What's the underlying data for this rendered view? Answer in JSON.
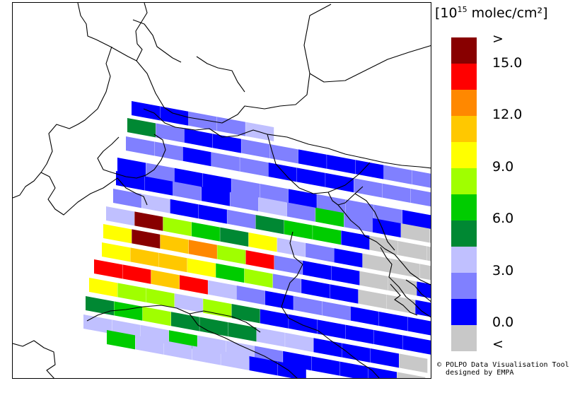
{
  "legend": {
    "unit_base": "[10",
    "unit_exp": "15",
    "unit_rest": " molec/cm²]",
    "labels": [
      ">",
      "15.0",
      "12.0",
      "9.0",
      "6.0",
      "3.0",
      "0.0",
      "<"
    ],
    "colors": [
      "#880000",
      "#ff0000",
      "#ff8800",
      "#ffc800",
      "#ffff00",
      "#a0ff00",
      "#00cc00",
      "#008833",
      "#c0c0ff",
      "#8080ff",
      "#0000ff",
      "#c8c8c8"
    ]
  },
  "credit": {
    "line1": "© POLPO Data Visualisation Tool",
    "line2": "designed by EMPA"
  },
  "swaths": [
    [
      10,
      10,
      9,
      9,
      8
    ],
    [
      7,
      9,
      10,
      10,
      9,
      9,
      10,
      10,
      10,
      9,
      9
    ],
    [
      9,
      9,
      10,
      9,
      9,
      10,
      10,
      10,
      9,
      9,
      9,
      11
    ],
    [
      10,
      9,
      10,
      10,
      9,
      9,
      10,
      9,
      9,
      9,
      10,
      11
    ],
    [
      10,
      10,
      9,
      10,
      9,
      8,
      9,
      6,
      9,
      10,
      11,
      11
    ],
    [
      9,
      8,
      10,
      10,
      9,
      7,
      6,
      6,
      10,
      11,
      11,
      11
    ],
    [
      8,
      0,
      5,
      6,
      7,
      4,
      8,
      9,
      10,
      11,
      11,
      11
    ],
    [
      4,
      0,
      3,
      2,
      5,
      1,
      9,
      10,
      10,
      11,
      11,
      10
    ],
    [
      4,
      3,
      3,
      4,
      6,
      5,
      9,
      10,
      10,
      11,
      11,
      10
    ],
    [
      1,
      1,
      3,
      1,
      8,
      9,
      10,
      9,
      9,
      10,
      10,
      10
    ],
    [
      4,
      5,
      5,
      8,
      5,
      7,
      10,
      10,
      10,
      10,
      10,
      10
    ],
    [
      7,
      6,
      5,
      7,
      7,
      7,
      8,
      8,
      10,
      10,
      10,
      11
    ],
    [
      8,
      8,
      8,
      6,
      8,
      8,
      9,
      10,
      10,
      10,
      10,
      11
    ],
    [
      6,
      8,
      8,
      8,
      8,
      10,
      10
    ]
  ]
}
